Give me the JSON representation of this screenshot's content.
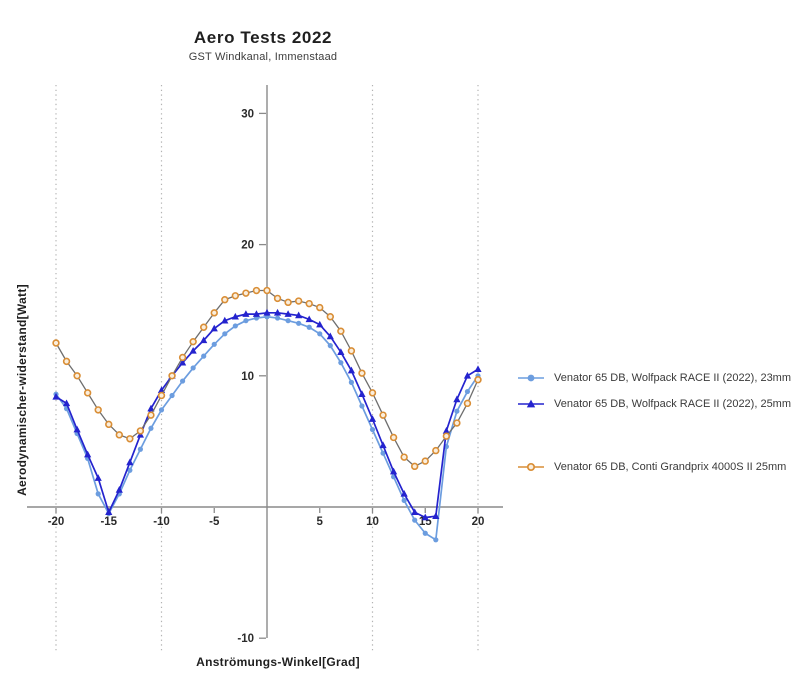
{
  "header": {
    "title": "Aero Tests 2022",
    "subtitle": "GST Windkanal, Immenstaad"
  },
  "colors": {
    "axis": "#8a8a8a",
    "gridline": "#b3b3b3",
    "tick_text": "#2b2b2b",
    "series_light_blue": "#6C9DDF",
    "series_dark_blue": "#2423CE",
    "series_orange": "#D98E36",
    "orange_line": "#6E6E6E"
  },
  "chart_data": {
    "type": "line",
    "title": "Aero Tests 2022",
    "subtitle": "GST Windkanal, Immenstaad",
    "xlabel": "Anströmungs-Winkel[Grad]",
    "ylabel": "Aerodynamischer-widerstand[Watt]",
    "x_start": -20,
    "x_step": 1,
    "xlim": [
      -22.5,
      22.5
    ],
    "ylim": [
      -12,
      32
    ],
    "x_ticks": [
      -20,
      -15,
      -10,
      -5,
      5,
      10,
      15,
      20
    ],
    "y_ticks": [
      30,
      20,
      10,
      -10
    ],
    "grid_x": [
      -20,
      -10,
      10,
      20
    ],
    "grid_on": "dotted-vertical-only",
    "legend_position": "right",
    "series": [
      {
        "name": "Venator 65 DB, Wolfpack RACE II (2022), 23mm",
        "marker": "circle",
        "color": "#6C9DDF",
        "line_color": "#6C9DDF",
        "values": [
          8.6,
          7.5,
          5.6,
          3.7,
          1.0,
          -0.5,
          1.0,
          2.8,
          4.4,
          6.0,
          7.4,
          8.5,
          9.6,
          10.6,
          11.5,
          12.4,
          13.2,
          13.8,
          14.2,
          14.4,
          14.5,
          14.4,
          14.2,
          14.0,
          13.7,
          13.2,
          12.3,
          11.0,
          9.5,
          7.7,
          5.9,
          4.1,
          2.3,
          0.5,
          -1.0,
          -2.0,
          -2.5,
          4.6,
          7.3,
          8.8,
          10.0
        ]
      },
      {
        "name": "Venator 65 DB, Wolfpack RACE II (2022), 25mm",
        "marker": "triangle",
        "color": "#2423CE",
        "line_color": "#2423CE",
        "values": [
          8.4,
          7.9,
          5.9,
          4.0,
          2.2,
          -0.4,
          1.3,
          3.4,
          5.5,
          7.5,
          8.9,
          10.0,
          11.0,
          11.9,
          12.7,
          13.6,
          14.2,
          14.5,
          14.7,
          14.7,
          14.8,
          14.8,
          14.7,
          14.6,
          14.3,
          13.9,
          13.0,
          11.8,
          10.4,
          8.6,
          6.7,
          4.7,
          2.7,
          1.0,
          -0.4,
          -0.8,
          -0.7,
          5.8,
          8.2,
          10.0,
          10.5
        ]
      },
      {
        "name": "Venator 65 DB, Conti Grandprix 4000S II 25mm",
        "marker": "open-circle",
        "color": "#D98E36",
        "line_color": "#6E6E6E",
        "values": [
          12.5,
          11.1,
          10.0,
          8.7,
          7.4,
          6.3,
          5.5,
          5.2,
          5.8,
          7.0,
          8.5,
          10.0,
          11.4,
          12.6,
          13.7,
          14.8,
          15.8,
          16.1,
          16.3,
          16.5,
          16.5,
          15.9,
          15.6,
          15.7,
          15.5,
          15.2,
          14.5,
          13.4,
          11.9,
          10.2,
          8.7,
          7.0,
          5.3,
          3.8,
          3.1,
          3.5,
          4.3,
          5.4,
          6.4,
          7.9,
          9.7
        ]
      }
    ]
  },
  "legend": {
    "items": [
      {
        "label": "Venator 65 DB, Wolfpack RACE II (2022), 23mm"
      },
      {
        "label": "Venator 65 DB, Wolfpack RACE II (2022), 25mm"
      },
      {
        "label": "Venator 65 DB, Conti Grandprix 4000S II 25mm"
      }
    ]
  }
}
